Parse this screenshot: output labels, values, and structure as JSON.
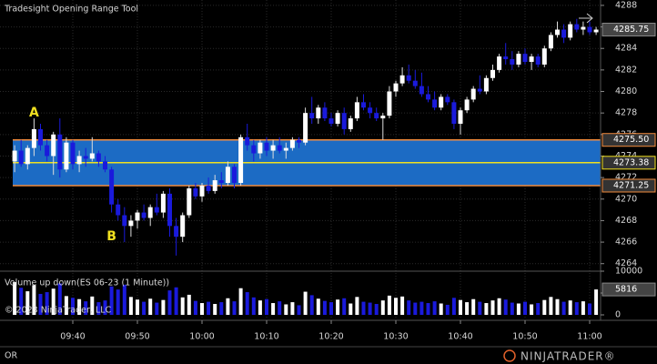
{
  "chart_data": {
    "type": "candlestick",
    "title": "Tradesight Opening Range Tool",
    "categories": [
      null,
      null,
      null,
      null,
      null,
      null,
      null,
      null,
      null,
      "09:40",
      null,
      null,
      null,
      null,
      null,
      null,
      null,
      null,
      null,
      "09:50",
      null,
      null,
      null,
      null,
      null,
      null,
      null,
      null,
      null,
      "10:00",
      null,
      null,
      null,
      null,
      null,
      null,
      null,
      null,
      null,
      "10:10",
      null,
      null,
      null,
      null,
      null,
      null,
      null,
      null,
      null,
      "10:20",
      null,
      null,
      null,
      null,
      null,
      null,
      null,
      null,
      null,
      "10:30",
      null,
      null,
      null,
      null,
      null,
      null,
      null,
      null,
      null,
      "10:40",
      null,
      null,
      null,
      null,
      null,
      null,
      null,
      null,
      null,
      "10:50",
      null,
      null,
      null,
      null,
      null,
      null,
      null,
      null,
      null,
      "11:00",
      null
    ],
    "open": [
      4273.5,
      4274.5,
      4273.25,
      4274.75,
      4276.5,
      4275,
      4274,
      4276,
      4272.75,
      4275.25,
      4273.25,
      4274,
      4273.75,
      4274.25,
      4273.5,
      4272.75,
      4269.5,
      4268.5,
      4267.5,
      4268,
      4268.75,
      4268.25,
      4269.25,
      4268.75,
      4270.5,
      4267.5,
      4266.5,
      4268.5,
      4271,
      4270.25,
      4271.25,
      4270.75,
      4271.75,
      4271.5,
      4273,
      4271.5,
      4275.75,
      4275,
      4274.25,
      4275.25,
      4274.5,
      4275,
      4274.5,
      4274.75,
      4275.5,
      4275.25,
      4278,
      4277.5,
      4278.5,
      4277.5,
      4277,
      4278,
      4276.5,
      4277.5,
      4279,
      4278.5,
      4278,
      4277.5,
      4277.75,
      4280,
      4280.75,
      4281.5,
      4281,
      4280.5,
      4279.75,
      4279.25,
      4278.5,
      4279.5,
      4279,
      4277,
      4278.25,
      4279.25,
      4280.25,
      4280,
      4281.25,
      4282,
      4283.25,
      4283,
      4282.5,
      4283.5,
      4282.75,
      4283.25,
      4282.5,
      4284,
      4285.25,
      4285.75,
      4285,
      4286.25,
      4285.75,
      4286,
      4285.5
    ],
    "high": [
      4275,
      4275.5,
      4275,
      4277.5,
      4277,
      4275.5,
      4276.25,
      4277.5,
      4275.75,
      4275.5,
      4274.5,
      4274.75,
      4275.75,
      4274.5,
      4274,
      4273,
      4270,
      4269.25,
      4268.5,
      4269,
      4269.5,
      4269.5,
      4270.5,
      4270.75,
      4271,
      4268.25,
      4268.75,
      4271.25,
      4271.5,
      4271.5,
      4272,
      4272.25,
      4272.5,
      4273.5,
      4273.25,
      4276,
      4277,
      4275.5,
      4275.5,
      4275.75,
      4275.5,
      4275.75,
      4275.25,
      4275.75,
      4275.75,
      4278.5,
      4279.5,
      4278.75,
      4279,
      4278,
      4278.25,
      4278.5,
      4277.75,
      4279.5,
      4279.75,
      4279,
      4278.5,
      4278,
      4280.5,
      4281,
      4282.25,
      4282.5,
      4282,
      4281.75,
      4280.5,
      4280,
      4279.75,
      4279.75,
      4279.25,
      4278.5,
      4279.5,
      4280.5,
      4281.5,
      4281.5,
      4282.5,
      4283.5,
      4284.5,
      4283.75,
      4283.75,
      4284,
      4283.5,
      4283.5,
      4284.25,
      4285.5,
      4286.5,
      4286.25,
      4286.5,
      4286.75,
      4286.5,
      4286.5,
      4286
    ],
    "low": [
      4272.5,
      4273,
      4272.75,
      4274,
      4274.5,
      4273.5,
      4272.25,
      4272,
      4272.5,
      4272.75,
      4272.5,
      4273,
      4273.5,
      4273,
      4272.5,
      4268.75,
      4268,
      4266,
      4266.5,
      4267.25,
      4268,
      4267.5,
      4268.5,
      4268.25,
      4266.5,
      4264.75,
      4266,
      4268.25,
      4270,
      4269.75,
      4270.5,
      4270.5,
      4271,
      4271.25,
      4271,
      4271.25,
      4274.5,
      4273.5,
      4273.75,
      4274,
      4273.75,
      4274.25,
      4273.75,
      4274.5,
      4274.75,
      4275,
      4277,
      4277,
      4277.25,
      4276.75,
      4276.75,
      4276,
      4276.25,
      4277.25,
      4278.25,
      4277.5,
      4277.25,
      4275.5,
      4277.5,
      4279.5,
      4280.5,
      4280.75,
      4280.25,
      4279.5,
      4279,
      4278.25,
      4278.25,
      4278.75,
      4276.5,
      4276,
      4278,
      4279,
      4279.75,
      4279.75,
      4281,
      4281.75,
      4282.5,
      4282,
      4282.25,
      4282.5,
      4282,
      4282.25,
      4282.25,
      4283.75,
      4285,
      4284.5,
      4284.75,
      4285.5,
      4285.25,
      4285.25,
      4285.25
    ],
    "close": [
      4274.5,
      4273.25,
      4274.75,
      4276.5,
      4275,
      4274,
      4276,
      4272.75,
      4275.25,
      4273.25,
      4274,
      4273.75,
      4274.25,
      4273.5,
      4272.75,
      4269.5,
      4268.5,
      4267.5,
      4268,
      4268.75,
      4268.25,
      4269.25,
      4268.75,
      4270.5,
      4267.5,
      4266.5,
      4268.5,
      4271,
      4270.25,
      4271.25,
      4270.75,
      4271.75,
      4271.5,
      4273,
      4271.5,
      4275.75,
      4275,
      4274.25,
      4275.25,
      4274.5,
      4275,
      4274.5,
      4274.75,
      4275.5,
      4275.25,
      4278,
      4277.5,
      4278.5,
      4277.5,
      4277,
      4278,
      4276.5,
      4277.5,
      4279,
      4278.5,
      4278,
      4277.5,
      4277.75,
      4280,
      4280.75,
      4281.5,
      4281,
      4280.5,
      4279.75,
      4279.25,
      4278.5,
      4279.5,
      4279,
      4277,
      4278.25,
      4279.25,
      4280.25,
      4280,
      4281.25,
      4282,
      4283.25,
      4283,
      4282.5,
      4283.5,
      4282.75,
      4283.25,
      4282.5,
      4284,
      4285.25,
      4285.75,
      4285,
      4286.25,
      4285.75,
      4286,
      4285.5,
      4285.75
    ],
    "up_color": "#ffffff",
    "down_color": "#1a1adc",
    "ylim": [
      4263.3,
      4288.5
    ],
    "yticks": [
      4264,
      4266,
      4268,
      4270,
      4272,
      4274,
      4276,
      4278,
      4280,
      4282,
      4284,
      4286,
      4288
    ],
    "grid": true,
    "last": 4285.75,
    "range": {
      "high": {
        "value": 4275.5,
        "label": "4275.50"
      },
      "mid": 4273.38,
      "low": 4271.25,
      "fill": "#1c6bc4",
      "edge_color": "#f08a3c",
      "mid_color": "#f0e020"
    },
    "annotations": [
      {
        "text": "A",
        "x": 3,
        "y": 4278
      },
      {
        "text": "B",
        "x": 15,
        "y": 4266.5
      }
    ],
    "volume_title": "Volume up down(ES 06-23 (1 Minute))",
    "volume": [
      7500,
      6200,
      5400,
      6800,
      4800,
      5200,
      6000,
      7200,
      4300,
      3900,
      3600,
      3100,
      4200,
      2900,
      3300,
      6500,
      5800,
      6900,
      4100,
      3500,
      3000,
      3700,
      2800,
      3400,
      5600,
      6300,
      4000,
      4600,
      3200,
      2700,
      3000,
      2500,
      2900,
      3800,
      3100,
      6100,
      5200,
      4000,
      3300,
      3600,
      2700,
      3100,
      2400,
      2900,
      2200,
      5300,
      4500,
      3700,
      3200,
      2900,
      3500,
      3800,
      2600,
      4100,
      3000,
      2800,
      2500,
      3300,
      4400,
      3900,
      4200,
      3300,
      2800,
      3000,
      2700,
      3100,
      2600,
      2300,
      3900,
      3400,
      2900,
      3600,
      3000,
      2700,
      3300,
      3800,
      3500,
      2800,
      2600,
      3000,
      2400,
      2700,
      3400,
      4100,
      3600,
      3000,
      3300,
      2900,
      3100,
      2600,
      5816
    ],
    "vlim": [
      0,
      10000
    ],
    "vticks": [
      0,
      5000,
      10000
    ],
    "copyright": "© 2023 NinjaTrader, LLC",
    "footer": "OR",
    "brand": "NINJATRADER®"
  }
}
